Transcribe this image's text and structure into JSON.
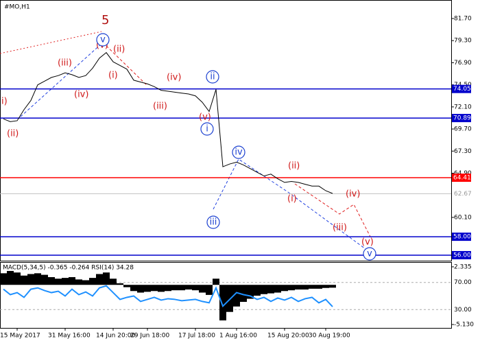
{
  "chart_data": [
    {
      "type": "line",
      "title": "#MO,H1",
      "color": "#000000",
      "categories": [
        null,
        null,
        "15 May 2017",
        null,
        null,
        null,
        null,
        null,
        null,
        "31 May 16:00",
        null,
        null,
        null,
        null,
        null,
        null,
        "14 Jun 20:00",
        null,
        null,
        null,
        null,
        "29 Jun 18:00",
        null,
        null,
        null,
        null,
        null,
        null,
        "17 Jul 18:00",
        null,
        null,
        null,
        null,
        null,
        "1 Aug 16:00",
        null,
        null,
        null,
        null,
        null,
        null,
        "15 Aug 20:00",
        null,
        null,
        null,
        null,
        null,
        "30 Aug 19:00",
        null
      ],
      "values": [
        70.8,
        70.5,
        70.6,
        71.8,
        72.8,
        74.5,
        74.9,
        75.3,
        75.5,
        75.8,
        75.6,
        75.3,
        75.5,
        76.3,
        77.4,
        78.0,
        77.0,
        76.6,
        76.2,
        75.0,
        74.8,
        74.6,
        74.3,
        73.9,
        73.8,
        73.7,
        73.6,
        73.5,
        73.3,
        72.6,
        71.6,
        74.0,
        65.6,
        65.9,
        66.1,
        65.8,
        65.4,
        65.0,
        64.6,
        64.8,
        64.3,
        63.9,
        64.0,
        63.9,
        63.7,
        63.5,
        63.5,
        63.0,
        62.7
      ],
      "ylim": [
        55.4,
        83.71
      ],
      "yticks": [
        {
          "value": 81.7,
          "label": "81.70"
        },
        {
          "value": 79.3,
          "label": "79.30"
        },
        {
          "value": 76.9,
          "label": "76.90"
        },
        {
          "value": 74.5,
          "label": "74.50"
        },
        {
          "value": 72.1,
          "label": "72.10"
        },
        {
          "value": 69.7,
          "label": "69.70"
        },
        {
          "value": 67.3,
          "label": "67.30"
        },
        {
          "value": 64.9,
          "label": "64.90"
        },
        {
          "value": 60.1,
          "label": "60.10"
        }
      ],
      "levels": [
        {
          "value": 74.05,
          "label": "74.05",
          "color": "#0000cc"
        },
        {
          "value": 70.89,
          "label": "70.89",
          "color": "#0000cc"
        },
        {
          "value": 64.41,
          "label": "64.41",
          "color": "#ff0000"
        },
        {
          "value": 58.0,
          "label": "58.00",
          "color": "#0000cc"
        },
        {
          "value": 56.0,
          "label": "56.00",
          "color": "#0000cc"
        }
      ],
      "current": {
        "value": 62.67,
        "label": "62.67"
      },
      "annotations": [
        "i)",
        "(ii)",
        "(iii)",
        "(iv)",
        "(v)",
        "5",
        "v",
        "(ii)",
        "(i)",
        "(iii)",
        "(iv)",
        "ii",
        "(v)",
        "i",
        "iii",
        "iv",
        "(ii)",
        "(i)",
        "(iv)",
        "(iii)",
        "(v)",
        "v"
      ]
    },
    {
      "type": "bar",
      "title": "MACD(5,34,5) -0.365 -0.264 RSI(14) 34.28",
      "series": [
        {
          "color": "#000000",
          "axis": "y2",
          "values": [
            1.5,
            1.8,
            1.6,
            1.2,
            1.4,
            1.5,
            1.3,
            1.0,
            0.8,
            0.9,
            1.0,
            0.7,
            0.6,
            0.9,
            1.4,
            1.6,
            0.8,
            0.2,
            -0.3,
            -0.8,
            -1.0,
            -0.9,
            -0.8,
            -0.9,
            -0.8,
            -0.7,
            -0.7,
            -0.6,
            -0.7,
            -1.0,
            -1.3,
            0.8,
            -4.6,
            -3.5,
            -2.8,
            -2.2,
            -1.8,
            -1.4,
            -1.2,
            -1.1,
            -1.0,
            -0.8,
            -0.7,
            -0.6,
            -0.6,
            -0.5,
            -0.5,
            -0.4,
            -0.365
          ]
        },
        {
          "color": "#1e90ff",
          "values": [
            60,
            52,
            55,
            48,
            60,
            62,
            58,
            55,
            57,
            50,
            60,
            52,
            56,
            50,
            62,
            65,
            55,
            45,
            48,
            50,
            42,
            45,
            48,
            44,
            46,
            45,
            43,
            44,
            45,
            42,
            40,
            62,
            35,
            45,
            55,
            52,
            50,
            45,
            48,
            42,
            47,
            44,
            48,
            42,
            46,
            48,
            40,
            45,
            34.28
          ]
        }
      ],
      "ylim": [
        3,
        99
      ],
      "yticks": [
        {
          "value": 70,
          "label": "70.00"
        },
        {
          "value": 30,
          "label": "30.00"
        }
      ],
      "y2lim": [
        -5.569,
        2.862
      ],
      "y2ticks": [
        {
          "value": 2.335,
          "label": "2.335"
        },
        {
          "value": -5.13,
          "label": "-5.130"
        }
      ]
    }
  ]
}
